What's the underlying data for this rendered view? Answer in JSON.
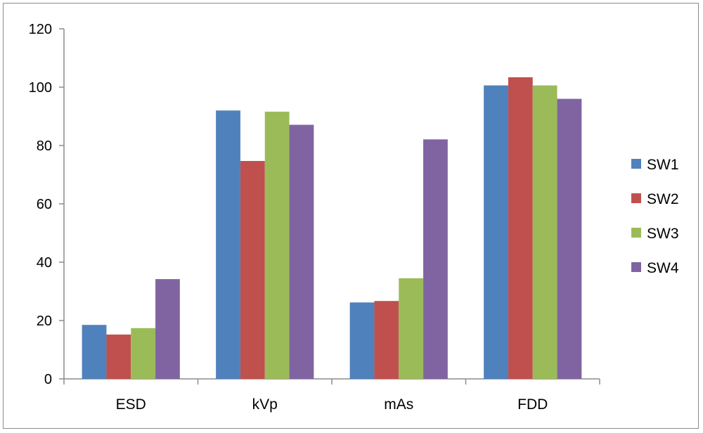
{
  "chart_data": {
    "type": "bar",
    "title": "",
    "xlabel": "",
    "ylabel": "",
    "categories": [
      "ESD",
      "kVp",
      "mAs",
      "FDD"
    ],
    "ylim": [
      0,
      120
    ],
    "yticks": [
      "0",
      "20",
      "40",
      "60",
      "80",
      "100",
      "120"
    ],
    "legend_position": "right",
    "grid": false,
    "series": [
      {
        "name": "SW1",
        "color": "#4F81BD",
        "values": [
          18.5,
          92,
          26.2,
          100.6
        ]
      },
      {
        "name": "SW2",
        "color": "#C0504D",
        "values": [
          15.2,
          74.7,
          26.7,
          103.4
        ]
      },
      {
        "name": "SW3",
        "color": "#9BBB59",
        "values": [
          17.4,
          91.6,
          34.5,
          100.6
        ]
      },
      {
        "name": "SW4",
        "color": "#8064A2",
        "values": [
          34.2,
          87.1,
          82.1,
          96
        ]
      }
    ]
  }
}
